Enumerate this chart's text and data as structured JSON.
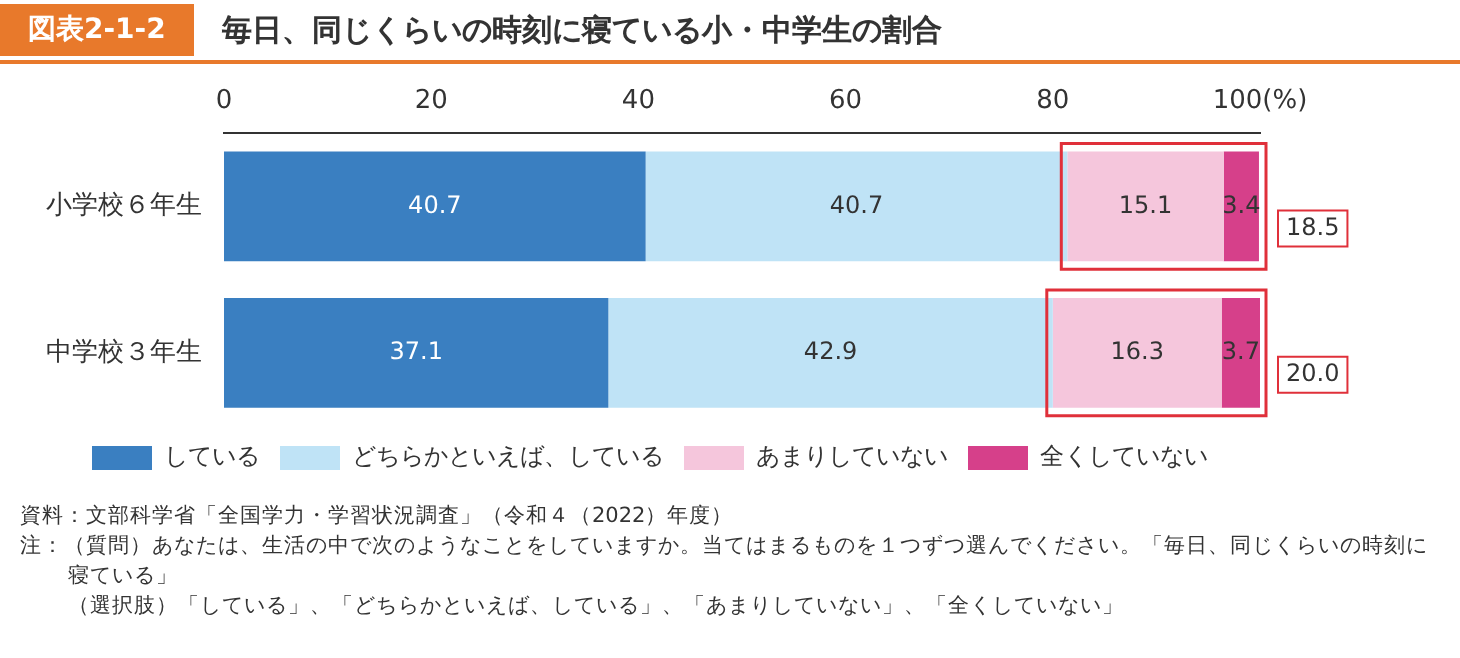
{
  "chart_data": {
    "type": "bar",
    "orientation": "horizontal",
    "stacked": true,
    "title": "図表2-1-2",
    "subtitle": "毎日、同じくらいの時刻に寝ている小・中学生の割合",
    "categories": [
      "小学校６年生",
      "中学校３年生"
    ],
    "series": [
      {
        "name": "している",
        "color": "#3a7fc1",
        "values": [
          40.7,
          37.1
        ]
      },
      {
        "name": "どちらかといえば、している",
        "color": "#bfe3f6",
        "values": [
          40.7,
          42.9
        ]
      },
      {
        "name": "あまりしていない",
        "color": "#f5c6dc",
        "values": [
          15.1,
          16.3
        ]
      },
      {
        "name": "全くしていない",
        "color": "#d6408a",
        "values": [
          3.4,
          3.7
        ]
      }
    ],
    "xlim": [
      0,
      100
    ],
    "xticks": [
      0,
      20,
      40,
      60,
      80,
      {
        "value": 100,
        "label": "100(%)"
      }
    ],
    "data_labels": true,
    "grid": false,
    "legend": "bottom",
    "annotations": [
      {
        "text": "18.5",
        "x": 100,
        "y": "小学校６年生"
      },
      {
        "text": "20.0",
        "x": 100,
        "y": "中学校３年生"
      },
      "資料：文部科学省「全国学力・学習状況調査」（令和４（2022）年度）",
      "注：（質問）あなたは、生活の中で次のようなことをしていますか。当てはまるものを１つずつ選んでください。「毎日、同じくらいの時刻に寝ている」",
      "（選択肢）「している」、「どちらかといえば、している」、「あまりしていない」、「全くしていない」"
    ]
  }
}
